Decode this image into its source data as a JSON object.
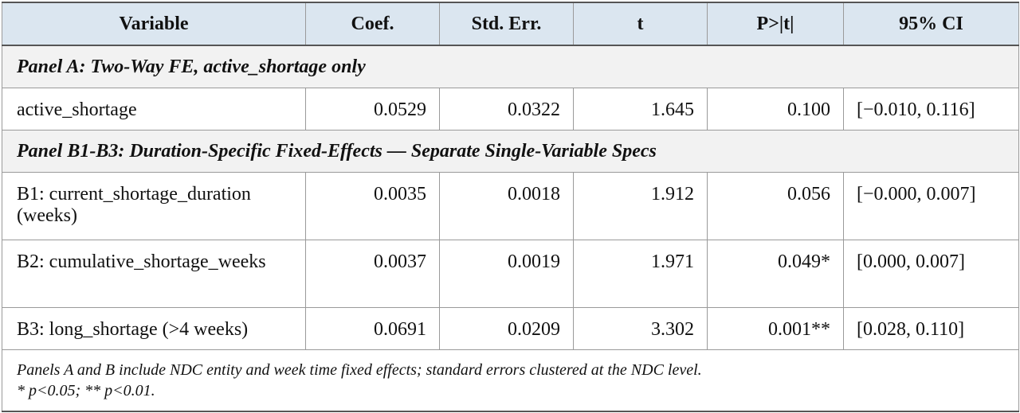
{
  "table": {
    "headers": [
      "Variable",
      "Coef.",
      "Std. Err.",
      "t",
      "P>|t|",
      "95% CI"
    ],
    "panel_a": {
      "title": "Panel A: Two-Way FE, active_shortage only",
      "rows": [
        {
          "variable": "active_shortage",
          "coef": "0.0529",
          "se": "0.0322",
          "t": "1.645",
          "p": "0.100",
          "ci": "[−0.010, 0.116]"
        }
      ]
    },
    "panel_b": {
      "title": "Panel B1-B3: Duration-Specific Fixed-Effects — Separate Single-Variable Specs",
      "rows": [
        {
          "variable": "B1: current_shortage_duration (weeks)",
          "coef": "0.0035",
          "se": "0.0018",
          "t": "1.912",
          "p": "0.056",
          "ci": "[−0.000, 0.007]"
        },
        {
          "variable": "B2: cumulative_shortage_weeks",
          "coef": "0.0037",
          "se": "0.0019",
          "t": "1.971",
          "p": "0.049*",
          "ci": "[0.000, 0.007]"
        },
        {
          "variable": "B3: long_shortage (>4 weeks)",
          "coef": "0.0691",
          "se": "0.0209",
          "t": "3.302",
          "p": "0.001**",
          "ci": "[0.028, 0.110]"
        }
      ]
    },
    "notes": [
      "Panels A and B include NDC entity and week time fixed effects; standard errors clustered at the NDC level.",
      "* p<0.05; ** p<0.01."
    ]
  }
}
